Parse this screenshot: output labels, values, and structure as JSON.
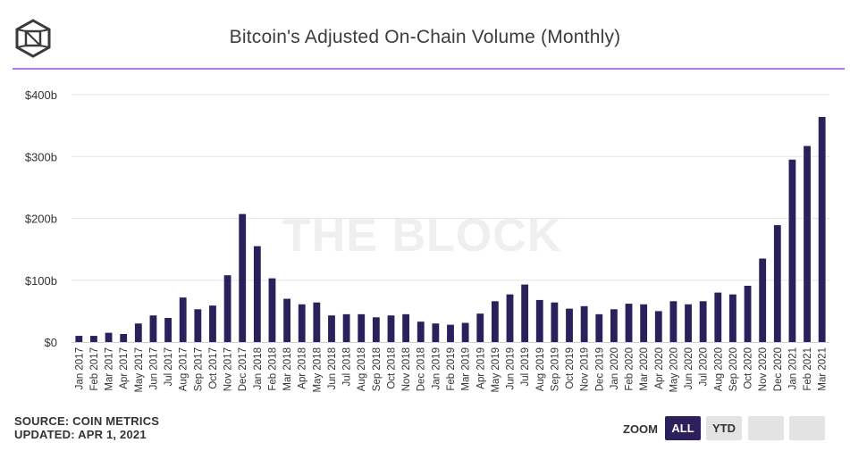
{
  "header": {
    "title": "Bitcoin's Adjusted On-Chain Volume (Monthly)"
  },
  "watermark": "THE BLOCK",
  "footer": {
    "source": "SOURCE: COIN METRICS",
    "updated": "UPDATED: APR 1, 2021"
  },
  "zoom": {
    "label": "ZOOM",
    "options": [
      "ALL",
      "YTD"
    ],
    "selected": "ALL"
  },
  "colors": {
    "bar": "#2b1f5c",
    "accent_rule": "#b978e6",
    "grid": "#e6e6e6"
  },
  "chart_data": {
    "type": "bar",
    "title": "Bitcoin's Adjusted On-Chain Volume (Monthly)",
    "ylim": [
      0,
      400
    ],
    "yticks": [
      "$0",
      "$100b",
      "$200b",
      "$300b",
      "$400b"
    ],
    "ytick_values": [
      0,
      100,
      200,
      300,
      400
    ],
    "unit": "billions USD",
    "grid": true,
    "categories": [
      "Jan 2017",
      "Feb 2017",
      "Mar 2017",
      "Apr 2017",
      "May 2017",
      "Jun 2017",
      "Jul 2017",
      "Aug 2017",
      "Sep 2017",
      "Oct 2017",
      "Nov 2017",
      "Dec 2017",
      "Jan 2018",
      "Feb 2018",
      "Mar 2018",
      "Apr 2018",
      "May 2018",
      "Jun 2018",
      "Jul 2018",
      "Aug 2018",
      "Sep 2018",
      "Oct 2018",
      "Nov 2018",
      "Dec 2018",
      "Jan 2019",
      "Feb 2019",
      "Mar 2019",
      "Apr 2019",
      "May 2019",
      "Jun 2019",
      "Jul 2019",
      "Aug 2019",
      "Sep 2019",
      "Oct 2019",
      "Nov 2019",
      "Dec 2019",
      "Jan 2020",
      "Feb 2020",
      "Mar 2020",
      "Apr 2020",
      "May 2020",
      "Jun 2020",
      "Jul 2020",
      "Aug 2020",
      "Sep 2020",
      "Oct 2020",
      "Nov 2020",
      "Dec 2020",
      "Jan 2021",
      "Feb 2021",
      "Mar 2021"
    ],
    "values": [
      10,
      10,
      15,
      13,
      30,
      43,
      39,
      72,
      53,
      59,
      108,
      207,
      155,
      103,
      70,
      61,
      64,
      43,
      45,
      45,
      40,
      43,
      45,
      33,
      30,
      28,
      31,
      46,
      66,
      77,
      93,
      68,
      64,
      54,
      58,
      45,
      53,
      62,
      61,
      50,
      66,
      61,
      66,
      80,
      77,
      91,
      135,
      189,
      295,
      317,
      364
    ]
  }
}
